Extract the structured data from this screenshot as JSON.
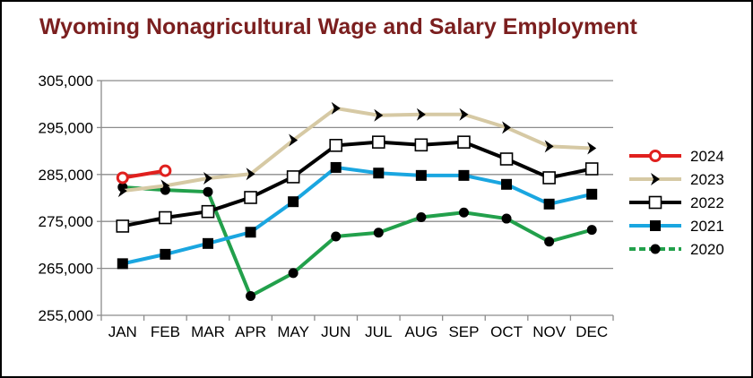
{
  "chart_data": {
    "type": "line",
    "title": "Wyoming Nonagricultural Wage and Salary Employment",
    "title_color": "#7b1f1f",
    "xlabel": "",
    "ylabel": "",
    "categories": [
      "JAN",
      "FEB",
      "MAR",
      "APR",
      "MAY",
      "JUN",
      "JUL",
      "AUG",
      "SEP",
      "OCT",
      "NOV",
      "DEC"
    ],
    "ylim": [
      255000,
      305000
    ],
    "yticks": [
      255000,
      265000,
      275000,
      285000,
      295000,
      305000
    ],
    "ytick_labels": [
      "255,000",
      "265,000",
      "275,000",
      "285,000",
      "295,000",
      "305,000"
    ],
    "grid": true,
    "legend_position": "right",
    "series": [
      {
        "name": "2024",
        "color": "#e0201e",
        "marker": "open-circle",
        "values": [
          284300,
          285800,
          null,
          null,
          null,
          null,
          null,
          null,
          null,
          null,
          null,
          null
        ]
      },
      {
        "name": "2023",
        "color": "#d6c9a4",
        "marker": "chevron",
        "values": [
          281500,
          282600,
          284200,
          285100,
          292300,
          299100,
          297600,
          297800,
          297800,
          295000,
          291000,
          290600
        ]
      },
      {
        "name": "2022",
        "color": "#000000",
        "marker": "open-square",
        "values": [
          274000,
          275800,
          277100,
          280100,
          284500,
          291200,
          291900,
          291300,
          291900,
          288300,
          284300,
          286200
        ]
      },
      {
        "name": "2021",
        "color": "#1aa6e0",
        "marker": "filled-square",
        "values": [
          266000,
          268000,
          270300,
          272700,
          279200,
          286500,
          285300,
          284800,
          284800,
          282900,
          278700,
          280800
        ]
      },
      {
        "name": "2020",
        "color": "#22a04b",
        "marker": "filled-circle",
        "values": [
          282300,
          281700,
          281300,
          259100,
          264000,
          271800,
          272600,
          275900,
          276900,
          275600,
          270700,
          273200
        ]
      }
    ]
  }
}
